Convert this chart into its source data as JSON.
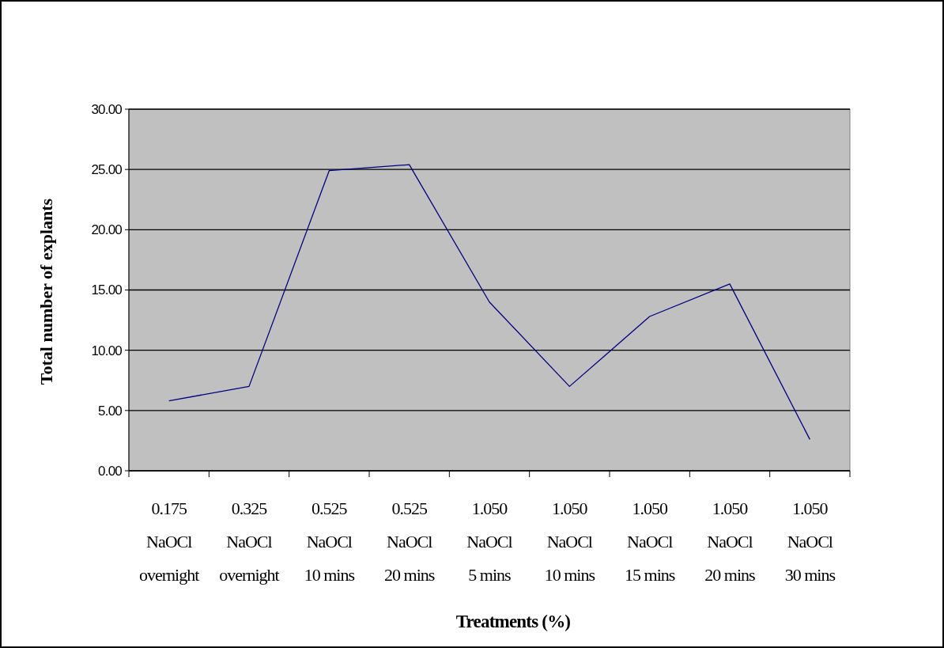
{
  "chart_data": {
    "type": "line",
    "xlabel": "Treatments  (%)",
    "ylabel": "Total  number of explants",
    "categories": [
      "0.175\nNaOCl\novernight",
      "0.325\nNaOCl\novernight",
      "0.525\nNaOCl\n10 mins",
      "0.525\nNaOCl\n20 mins",
      "1.050\nNaOCl\n5 mins",
      "1.050\nNaOCl\n10 mins",
      "1.050\nNaOCl\n15 mins",
      "1.050\nNaOCl\n20 mins",
      "1.050\nNaOCl\n30 mins"
    ],
    "series": [
      {
        "color": "#000080",
        "values": [
          5.8,
          7.0,
          24.9,
          25.4,
          14.0,
          7.0,
          12.8,
          15.5,
          2.6
        ]
      }
    ],
    "ylim": [
      0,
      30
    ],
    "yticks": [
      {
        "value": 0,
        "label": "0.00"
      },
      {
        "value": 5,
        "label": "5.00"
      },
      {
        "value": 10,
        "label": "10.00"
      },
      {
        "value": 15,
        "label": "15.00"
      },
      {
        "value": 20,
        "label": "20.00"
      },
      {
        "value": 25,
        "label": "25.00"
      },
      {
        "value": 30,
        "label": "30.00"
      }
    ],
    "grid": "y",
    "marker": "none",
    "line_style": "solid"
  }
}
